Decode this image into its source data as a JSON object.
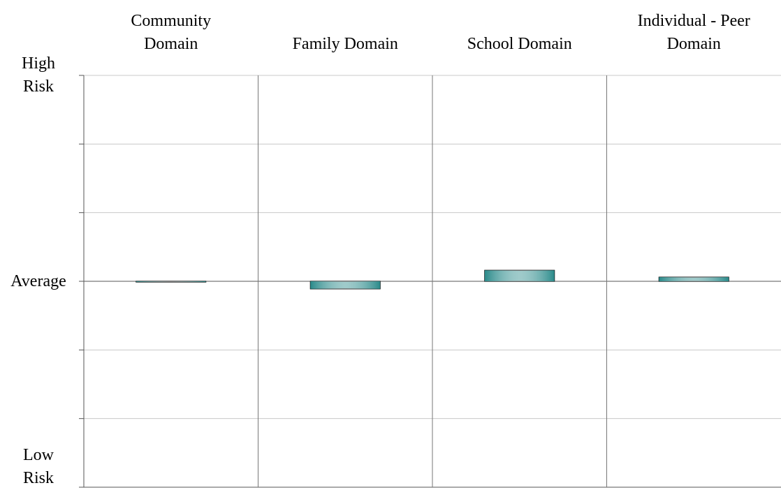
{
  "chart_data": {
    "type": "bar",
    "categories": [
      "Community\nDomain",
      "Family Domain",
      "School Domain",
      "Individual - Peer\nDomain"
    ],
    "values": [
      0,
      -0.11,
      0.16,
      0.06
    ],
    "color": "#2a8a8a",
    "ylim": [
      -3,
      3
    ],
    "yticks": [
      {
        "value": -3,
        "label": "Low\nRisk"
      },
      {
        "value": -2,
        "label": null
      },
      {
        "value": -1,
        "label": null
      },
      {
        "value": 0,
        "label": "Average"
      },
      {
        "value": 1,
        "label": null
      },
      {
        "value": 2,
        "label": null
      },
      {
        "value": 3,
        "label": "High\nRisk"
      }
    ],
    "grid": true
  }
}
